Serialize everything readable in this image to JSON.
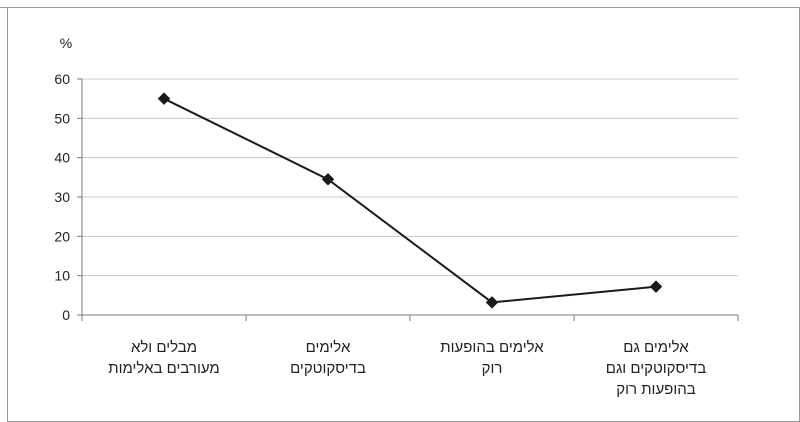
{
  "chart_data": {
    "type": "line",
    "unit_label": "%",
    "categories": [
      [
        "מבלים ולא",
        "מעורבים באלימות"
      ],
      [
        "אלימים",
        "בדיסקוטקים"
      ],
      [
        "אלימים בהופעות",
        "רוק"
      ],
      [
        "אלימים גם",
        "בדיסקוטקים וגם",
        "בהופעות רוק"
      ]
    ],
    "series": [
      {
        "values": [
          55,
          34.5,
          3.2,
          7.2
        ]
      }
    ],
    "ylim": [
      0,
      60
    ],
    "yticks": [
      "0",
      "10",
      "20",
      "30",
      "40",
      "50",
      "60"
    ],
    "grid": true,
    "marker": "diamond",
    "colors": {
      "line": "#1a1a1a",
      "marker": "#1a1a1a",
      "grid": "#c8c8c8",
      "axis": "#7a7a7a"
    }
  }
}
